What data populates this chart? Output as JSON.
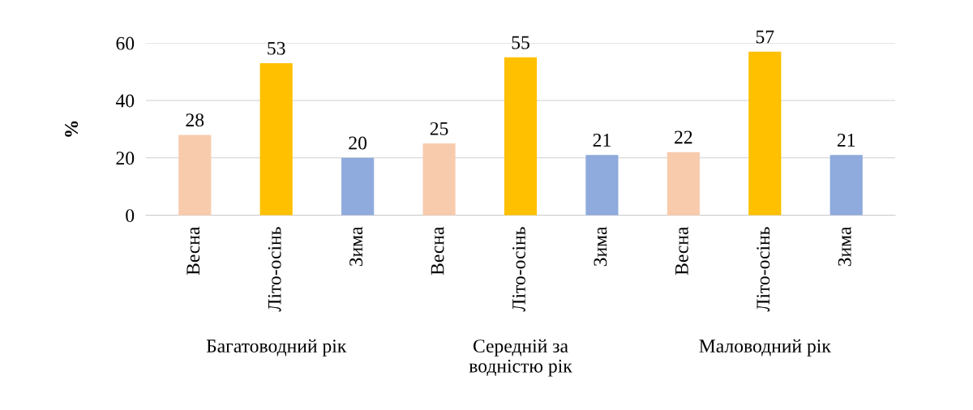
{
  "chart_data": {
    "type": "bar",
    "ylabel": "%",
    "categories": [
      "Весна",
      "Літо-осінь",
      "Зима",
      "Весна",
      "Літо-осінь",
      "Зима",
      "Весна",
      "Літо-осінь",
      "Зима"
    ],
    "values": [
      28,
      53,
      20,
      25,
      55,
      21,
      22,
      57,
      21
    ],
    "colors": [
      "#f8cbad",
      "#ffc000",
      "#8faadc",
      "#f8cbad",
      "#ffc000",
      "#8faadc",
      "#f8cbad",
      "#ffc000",
      "#8faadc"
    ],
    "ylim": [
      0,
      60
    ],
    "yticks": [
      0,
      20,
      40,
      60
    ],
    "grid": "y",
    "data_labels": true,
    "annotations": [
      "Багатоводний рік",
      "Середній за\nводністю рік",
      "Маловодний рік"
    ]
  }
}
